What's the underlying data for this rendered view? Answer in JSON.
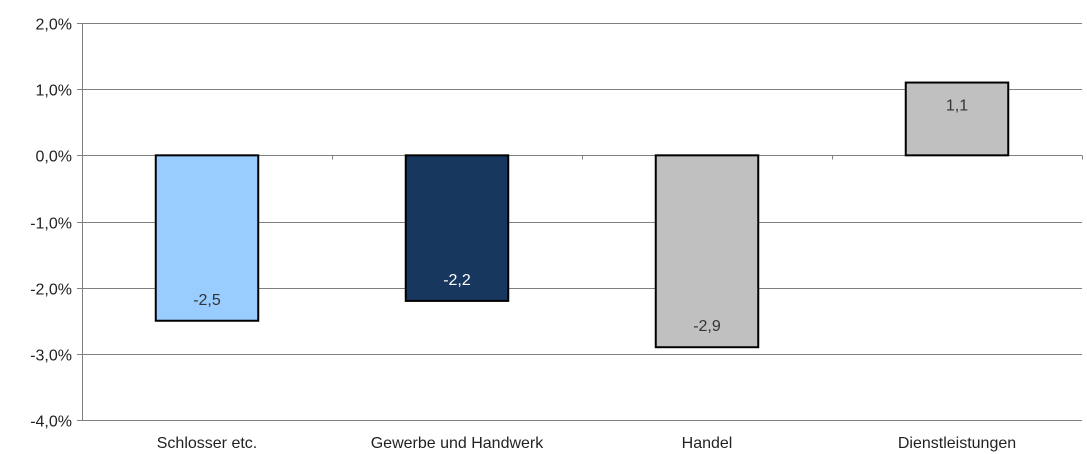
{
  "chart_data": {
    "type": "bar",
    "categories": [
      "Schlosser etc.",
      "Gewerbe und Handwerk",
      "Handel",
      "Dienstleistungen"
    ],
    "values": [
      -2.5,
      -2.2,
      -2.9,
      1.1
    ],
    "value_labels": [
      "-2,5",
      "-2,2",
      "-2,9",
      "1,1"
    ],
    "y_ticks": [
      2.0,
      1.0,
      0.0,
      -1.0,
      -2.0,
      -3.0,
      -4.0
    ],
    "y_tick_labels": [
      "2,0%",
      "1,0%",
      "0,0%",
      "-1,0%",
      "-2,0%",
      "-3,0%",
      "-4,0%"
    ],
    "ylim": [
      -4.0,
      2.0
    ],
    "grid": true,
    "legend": "none",
    "colors": {
      "bars": [
        "#99ccff",
        "#17375e",
        "#c0c0c0",
        "#c0c0c0"
      ],
      "labels": [
        "#333333",
        "#ffffff",
        "#333333",
        "#333333"
      ],
      "bar_border": "#000000",
      "grid": "#808080",
      "axis": "#808080"
    }
  }
}
